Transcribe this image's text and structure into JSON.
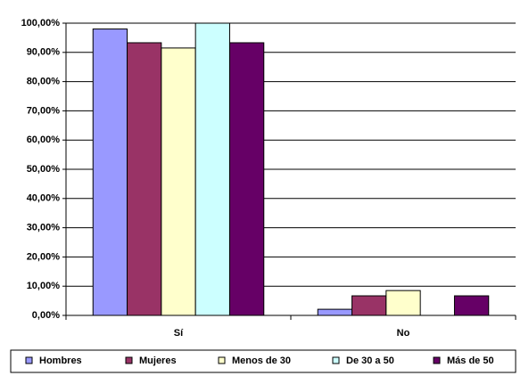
{
  "chart_data": {
    "type": "bar",
    "categories": [
      "Sí",
      "No"
    ],
    "series": [
      {
        "name": "Hombres",
        "color": "#9999FF",
        "values": [
          98,
          2.1
        ]
      },
      {
        "name": "Mujeres",
        "color": "#993366",
        "values": [
          93.3,
          6.7
        ]
      },
      {
        "name": "Menos de 30",
        "color": "#FFFFCC",
        "values": [
          91.5,
          8.5
        ]
      },
      {
        "name": "De 30 a 50",
        "color": "#CCFFFF",
        "values": [
          100,
          0
        ]
      },
      {
        "name": "Más de 50",
        "color": "#660066",
        "values": [
          93.3,
          6.7
        ]
      }
    ],
    "ylim": [
      0,
      100
    ],
    "yticks": [
      {
        "value": 0,
        "label": "0,00%"
      },
      {
        "value": 10,
        "label": "10,00%"
      },
      {
        "value": 20,
        "label": "20,00%"
      },
      {
        "value": 30,
        "label": "30,00%"
      },
      {
        "value": 40,
        "label": "40,00%"
      },
      {
        "value": 50,
        "label": "50,00%"
      },
      {
        "value": 60,
        "label": "60,00%"
      },
      {
        "value": 70,
        "label": "70,00%"
      },
      {
        "value": 80,
        "label": "80,00%"
      },
      {
        "value": 90,
        "label": "90,00%"
      },
      {
        "value": 100,
        "label": "100,00%"
      }
    ],
    "grid": true,
    "legend": "bottom"
  }
}
